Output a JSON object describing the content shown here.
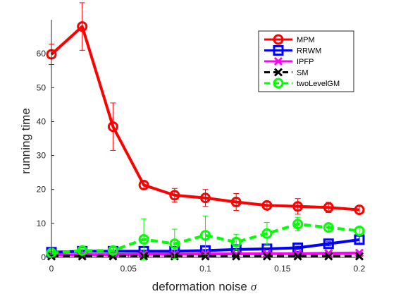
{
  "chart_data": {
    "type": "line",
    "xlabel": "deformation noise",
    "xlabel_symbol": "σ",
    "ylabel": "running time",
    "xlim": [
      0,
      0.2
    ],
    "ylim": [
      0,
      70
    ],
    "x": [
      0,
      0.02,
      0.04,
      0.06,
      0.08,
      0.1,
      0.12,
      0.14,
      0.16,
      0.18,
      0.2
    ],
    "x_ticks": [
      0,
      0.05,
      0.1,
      0.15,
      0.2
    ],
    "x_tick_labels": [
      "0",
      "0.05",
      "0.1",
      "0.15",
      "0.2"
    ],
    "y_ticks": [
      0,
      10,
      20,
      30,
      40,
      50,
      60
    ],
    "y_tick_labels": [
      "0",
      "10",
      "20",
      "30",
      "40",
      "50",
      "60"
    ],
    "grid": false,
    "legend_position": "top-right",
    "series": [
      {
        "name": "MPM",
        "color": "#ff0000",
        "marker": "circle",
        "dashed": false,
        "values": [
          59.8,
          68,
          38.5,
          21.3,
          18.3,
          17.5,
          16.3,
          15.3,
          15.0,
          14.7,
          14.0
        ],
        "errors": [
          3.0,
          7.0,
          7.0,
          1.0,
          2.0,
          2.5,
          2.5,
          1.0,
          2.3,
          1.5,
          1.2
        ]
      },
      {
        "name": "RRWM",
        "color": "#0000ff",
        "marker": "square",
        "dashed": false,
        "values": [
          1.5,
          1.8,
          1.8,
          1.8,
          1.8,
          2.0,
          2.3,
          2.5,
          2.8,
          4.0,
          5.2
        ],
        "errors": [
          0.3,
          0.3,
          0.3,
          0.3,
          0.3,
          0.3,
          0.3,
          0.3,
          0.5,
          0.6,
          1.0
        ]
      },
      {
        "name": "IPFP",
        "color": "#ff00ff",
        "marker": "x",
        "dashed": false,
        "values": [
          0.7,
          0.8,
          0.8,
          0.9,
          0.9,
          1.0,
          1.0,
          1.1,
          1.1,
          1.2,
          1.3
        ],
        "errors": [
          0.1,
          0.1,
          0.1,
          0.1,
          0.1,
          0.1,
          0.1,
          0.1,
          0.1,
          0.1,
          0.1
        ]
      },
      {
        "name": "SM",
        "color": "#000000",
        "marker": "x",
        "dashed": true,
        "values": [
          0.3,
          0.3,
          0.3,
          0.3,
          0.3,
          0.3,
          0.3,
          0.3,
          0.3,
          0.3,
          0.3
        ],
        "errors": [
          0,
          0,
          0,
          0,
          0,
          0,
          0,
          0,
          0,
          0,
          0
        ]
      },
      {
        "name": "twoLevelGM",
        "color": "#00ff00",
        "marker": "circle",
        "dashed": true,
        "values": [
          1.3,
          2.0,
          2.0,
          5.3,
          4.0,
          6.5,
          4.5,
          7.0,
          9.8,
          8.8,
          7.8
        ],
        "errors": [
          0.5,
          0.5,
          0.8,
          6.0,
          4.3,
          5.7,
          2.3,
          3.3,
          2.0,
          1.2,
          1.2
        ]
      }
    ]
  }
}
